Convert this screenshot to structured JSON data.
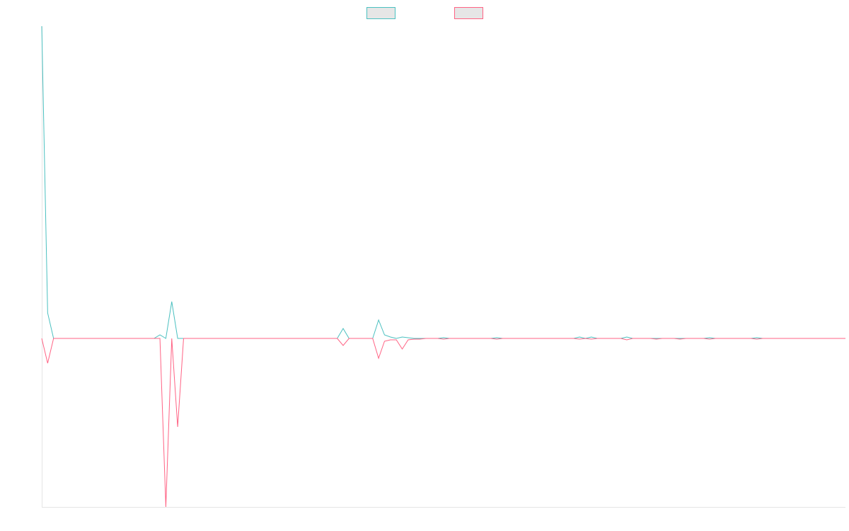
{
  "colors": {
    "series_a": "#4bc0c0",
    "series_b": "#ff6384",
    "legend_fill": "#e6e6e6",
    "axis": "#e5e5e5"
  },
  "chart_data": {
    "type": "line",
    "title": "",
    "xlabel": "",
    "ylabel": "",
    "grid": false,
    "legend": "top-center",
    "x": [
      0,
      1,
      2,
      3,
      4,
      5,
      6,
      7,
      8,
      9,
      10,
      11,
      12,
      13,
      14,
      15,
      16,
      17,
      18,
      19,
      20,
      21,
      22,
      23,
      24,
      25,
      26,
      27,
      28,
      29,
      30,
      31,
      32,
      33,
      34,
      35,
      36,
      37,
      38,
      39,
      40,
      41,
      42,
      43,
      44,
      45,
      46,
      47,
      48,
      49,
      50,
      51,
      52,
      53,
      54,
      55,
      56,
      57,
      58,
      59,
      60,
      61,
      62,
      63,
      64,
      65,
      66,
      67,
      68,
      69,
      70,
      71,
      72,
      73,
      74,
      75,
      76,
      77,
      78,
      79,
      80,
      81,
      82,
      83,
      84,
      85,
      86,
      87,
      88,
      89,
      90,
      91,
      92,
      93,
      94,
      95,
      96,
      97,
      98,
      99,
      100,
      101,
      102,
      103,
      104,
      105,
      106,
      107,
      108,
      109,
      110,
      111,
      112,
      113,
      114,
      115,
      116,
      117,
      118,
      119,
      120,
      121,
      122,
      123,
      124,
      125,
      126,
      127,
      128,
      129,
      130,
      131,
      132,
      133,
      134,
      135,
      136
    ],
    "ylim": [
      -238,
      441
    ],
    "series": [
      {
        "name": "",
        "color_key": "series_a",
        "values": [
          441,
          36,
          0,
          0,
          0,
          0,
          0,
          0,
          0,
          0,
          0,
          0,
          0,
          0,
          0,
          0,
          0,
          0,
          0,
          0,
          5,
          0,
          52,
          0,
          0,
          0,
          0,
          0,
          0,
          0,
          0,
          0,
          0,
          0,
          0,
          0,
          0,
          0,
          0,
          0,
          0,
          0,
          0,
          0,
          0,
          0,
          0,
          0,
          0,
          0,
          0,
          14,
          0,
          0,
          0,
          0,
          0,
          26,
          5,
          2,
          0,
          2,
          1,
          0,
          0,
          0,
          0,
          0,
          1,
          0,
          0,
          0,
          0,
          0,
          0,
          0,
          0,
          1,
          0,
          0,
          0,
          0,
          0,
          0,
          0,
          0,
          0,
          0,
          0,
          0,
          0,
          2,
          0,
          2,
          0,
          0,
          0,
          0,
          0,
          2,
          0,
          0,
          0,
          0,
          0,
          0,
          0,
          0,
          0,
          0,
          0,
          0,
          0,
          1,
          0,
          0,
          0,
          0,
          0,
          0,
          0,
          1,
          0,
          0,
          0,
          0,
          0,
          0,
          0,
          0,
          0,
          0,
          0,
          0,
          0,
          0,
          0
        ]
      },
      {
        "name": "",
        "color_key": "series_b",
        "values": [
          0,
          -35,
          0,
          0,
          0,
          0,
          0,
          0,
          0,
          0,
          0,
          0,
          0,
          0,
          0,
          0,
          0,
          0,
          0,
          0,
          0,
          -238,
          0,
          -125,
          0,
          0,
          0,
          0,
          0,
          0,
          0,
          0,
          0,
          0,
          0,
          0,
          0,
          0,
          0,
          0,
          0,
          0,
          0,
          0,
          0,
          0,
          0,
          0,
          0,
          0,
          0,
          -10,
          0,
          0,
          0,
          0,
          0,
          -28,
          -4,
          -2,
          -2,
          -15,
          -2,
          -1,
          -1,
          0,
          0,
          0,
          -1,
          0,
          0,
          0,
          0,
          0,
          0,
          0,
          0,
          -1,
          0,
          0,
          0,
          0,
          0,
          0,
          0,
          0,
          0,
          0,
          0,
          0,
          0,
          -1,
          0,
          -1,
          0,
          0,
          0,
          0,
          0,
          -2,
          0,
          0,
          0,
          0,
          -1,
          0,
          0,
          0,
          -1,
          0,
          0,
          0,
          0,
          -1,
          0,
          0,
          0,
          0,
          0,
          0,
          0,
          -1,
          0,
          0,
          0,
          0,
          0,
          0,
          0,
          0,
          0,
          0,
          0,
          0,
          0,
          0,
          0
        ]
      }
    ]
  }
}
